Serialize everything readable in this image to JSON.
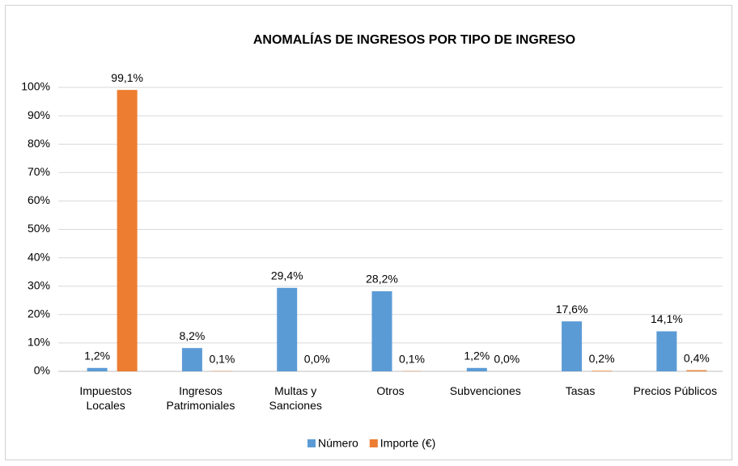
{
  "chart_data": {
    "type": "bar",
    "title": "ANOMALÍAS DE INGRESOS POR TIPO DE INGRESO",
    "categories": [
      "Impuestos Locales",
      "Ingresos Patrimoniales",
      "Multas y Sanciones",
      "Otros",
      "Subvenciones",
      "Tasas",
      "Precios Públicos"
    ],
    "series": [
      {
        "name": "Número",
        "color": "#5b9bd5",
        "values": [
          1.2,
          8.2,
          29.4,
          28.2,
          1.2,
          17.6,
          14.1
        ],
        "value_labels": [
          "1,2%",
          "8,2%",
          "29,4%",
          "28,2%",
          "1,2%",
          "17,6%",
          "14,1%"
        ]
      },
      {
        "name": "Importe  (€)",
        "color": "#ed7d31",
        "values": [
          99.1,
          0.1,
          0.0,
          0.1,
          0.0,
          0.2,
          0.4
        ],
        "value_labels": [
          "99,1%",
          "0,1%",
          "0,0%",
          "0,1%",
          "0,0%",
          "0,2%",
          "0,4%"
        ]
      }
    ],
    "ylim": [
      0,
      100
    ],
    "yticks": [
      {
        "value": 0,
        "label": "0%"
      },
      {
        "value": 10,
        "label": "10%"
      },
      {
        "value": 20,
        "label": "20%"
      },
      {
        "value": 30,
        "label": "30%"
      },
      {
        "value": 40,
        "label": "40%"
      },
      {
        "value": 50,
        "label": "50%"
      },
      {
        "value": 60,
        "label": "60%"
      },
      {
        "value": 70,
        "label": "70%"
      },
      {
        "value": 80,
        "label": "80%"
      },
      {
        "value": 90,
        "label": "90%"
      },
      {
        "value": 100,
        "label": "100%"
      }
    ],
    "grid": true,
    "legend": "bottom"
  }
}
